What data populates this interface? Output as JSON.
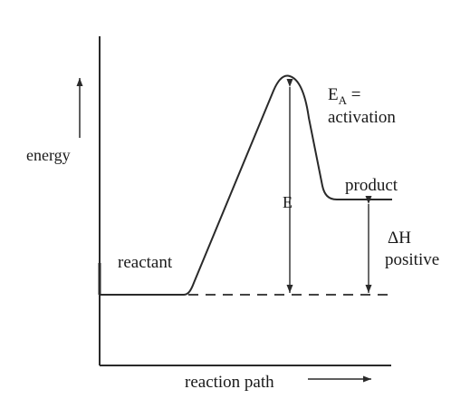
{
  "labels": {
    "energy": "energy",
    "reactant": "reactant",
    "product": "product",
    "e": "E",
    "ea_main": "E",
    "ea_sub": "A",
    "ea_eq": " =",
    "activation": "activation",
    "delta_h": "ΔH",
    "positive": "positive",
    "reaction_path": "reaction path"
  },
  "colors": {
    "ink": "#2a2a2a",
    "background": "#ffffff"
  }
}
